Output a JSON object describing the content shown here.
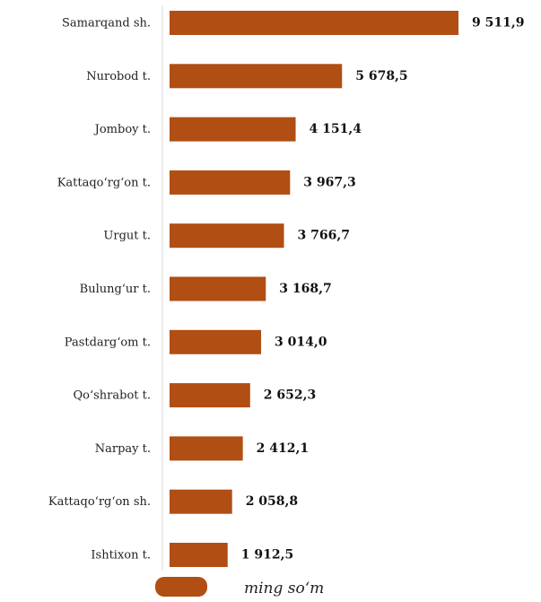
{
  "chart_data": {
    "type": "bar",
    "orientation": "horizontal",
    "categories": [
      "Samarqand sh.",
      "Nurobod t.",
      "Jomboy t.",
      "Kattaqo‘rg‘on t.",
      "Urgut t.",
      "Bulung‘ur t.",
      "Pastdarg‘om t.",
      "Qo‘shrabot t.",
      "Narpay t.",
      "Kattaqo‘rg‘on sh.",
      "Ishtixon t."
    ],
    "values": [
      9511.9,
      5678.5,
      4151.4,
      3967.3,
      3766.7,
      3168.7,
      3014.0,
      2652.3,
      2412.1,
      2058.8,
      1912.5
    ],
    "value_labels": [
      "9 511,9",
      "5 678,5",
      "4 151,4",
      "3 967,3",
      "3 766,7",
      "3 168,7",
      "3 014,0",
      "2 652,3",
      "2 412,1",
      "2 058,8",
      "1 912,5"
    ],
    "series": [
      {
        "name": "ming so‘m",
        "color": "#B04E14"
      }
    ],
    "legend_position": "bottom-center",
    "xlim": [
      0,
      9511.9
    ],
    "grid": false
  }
}
